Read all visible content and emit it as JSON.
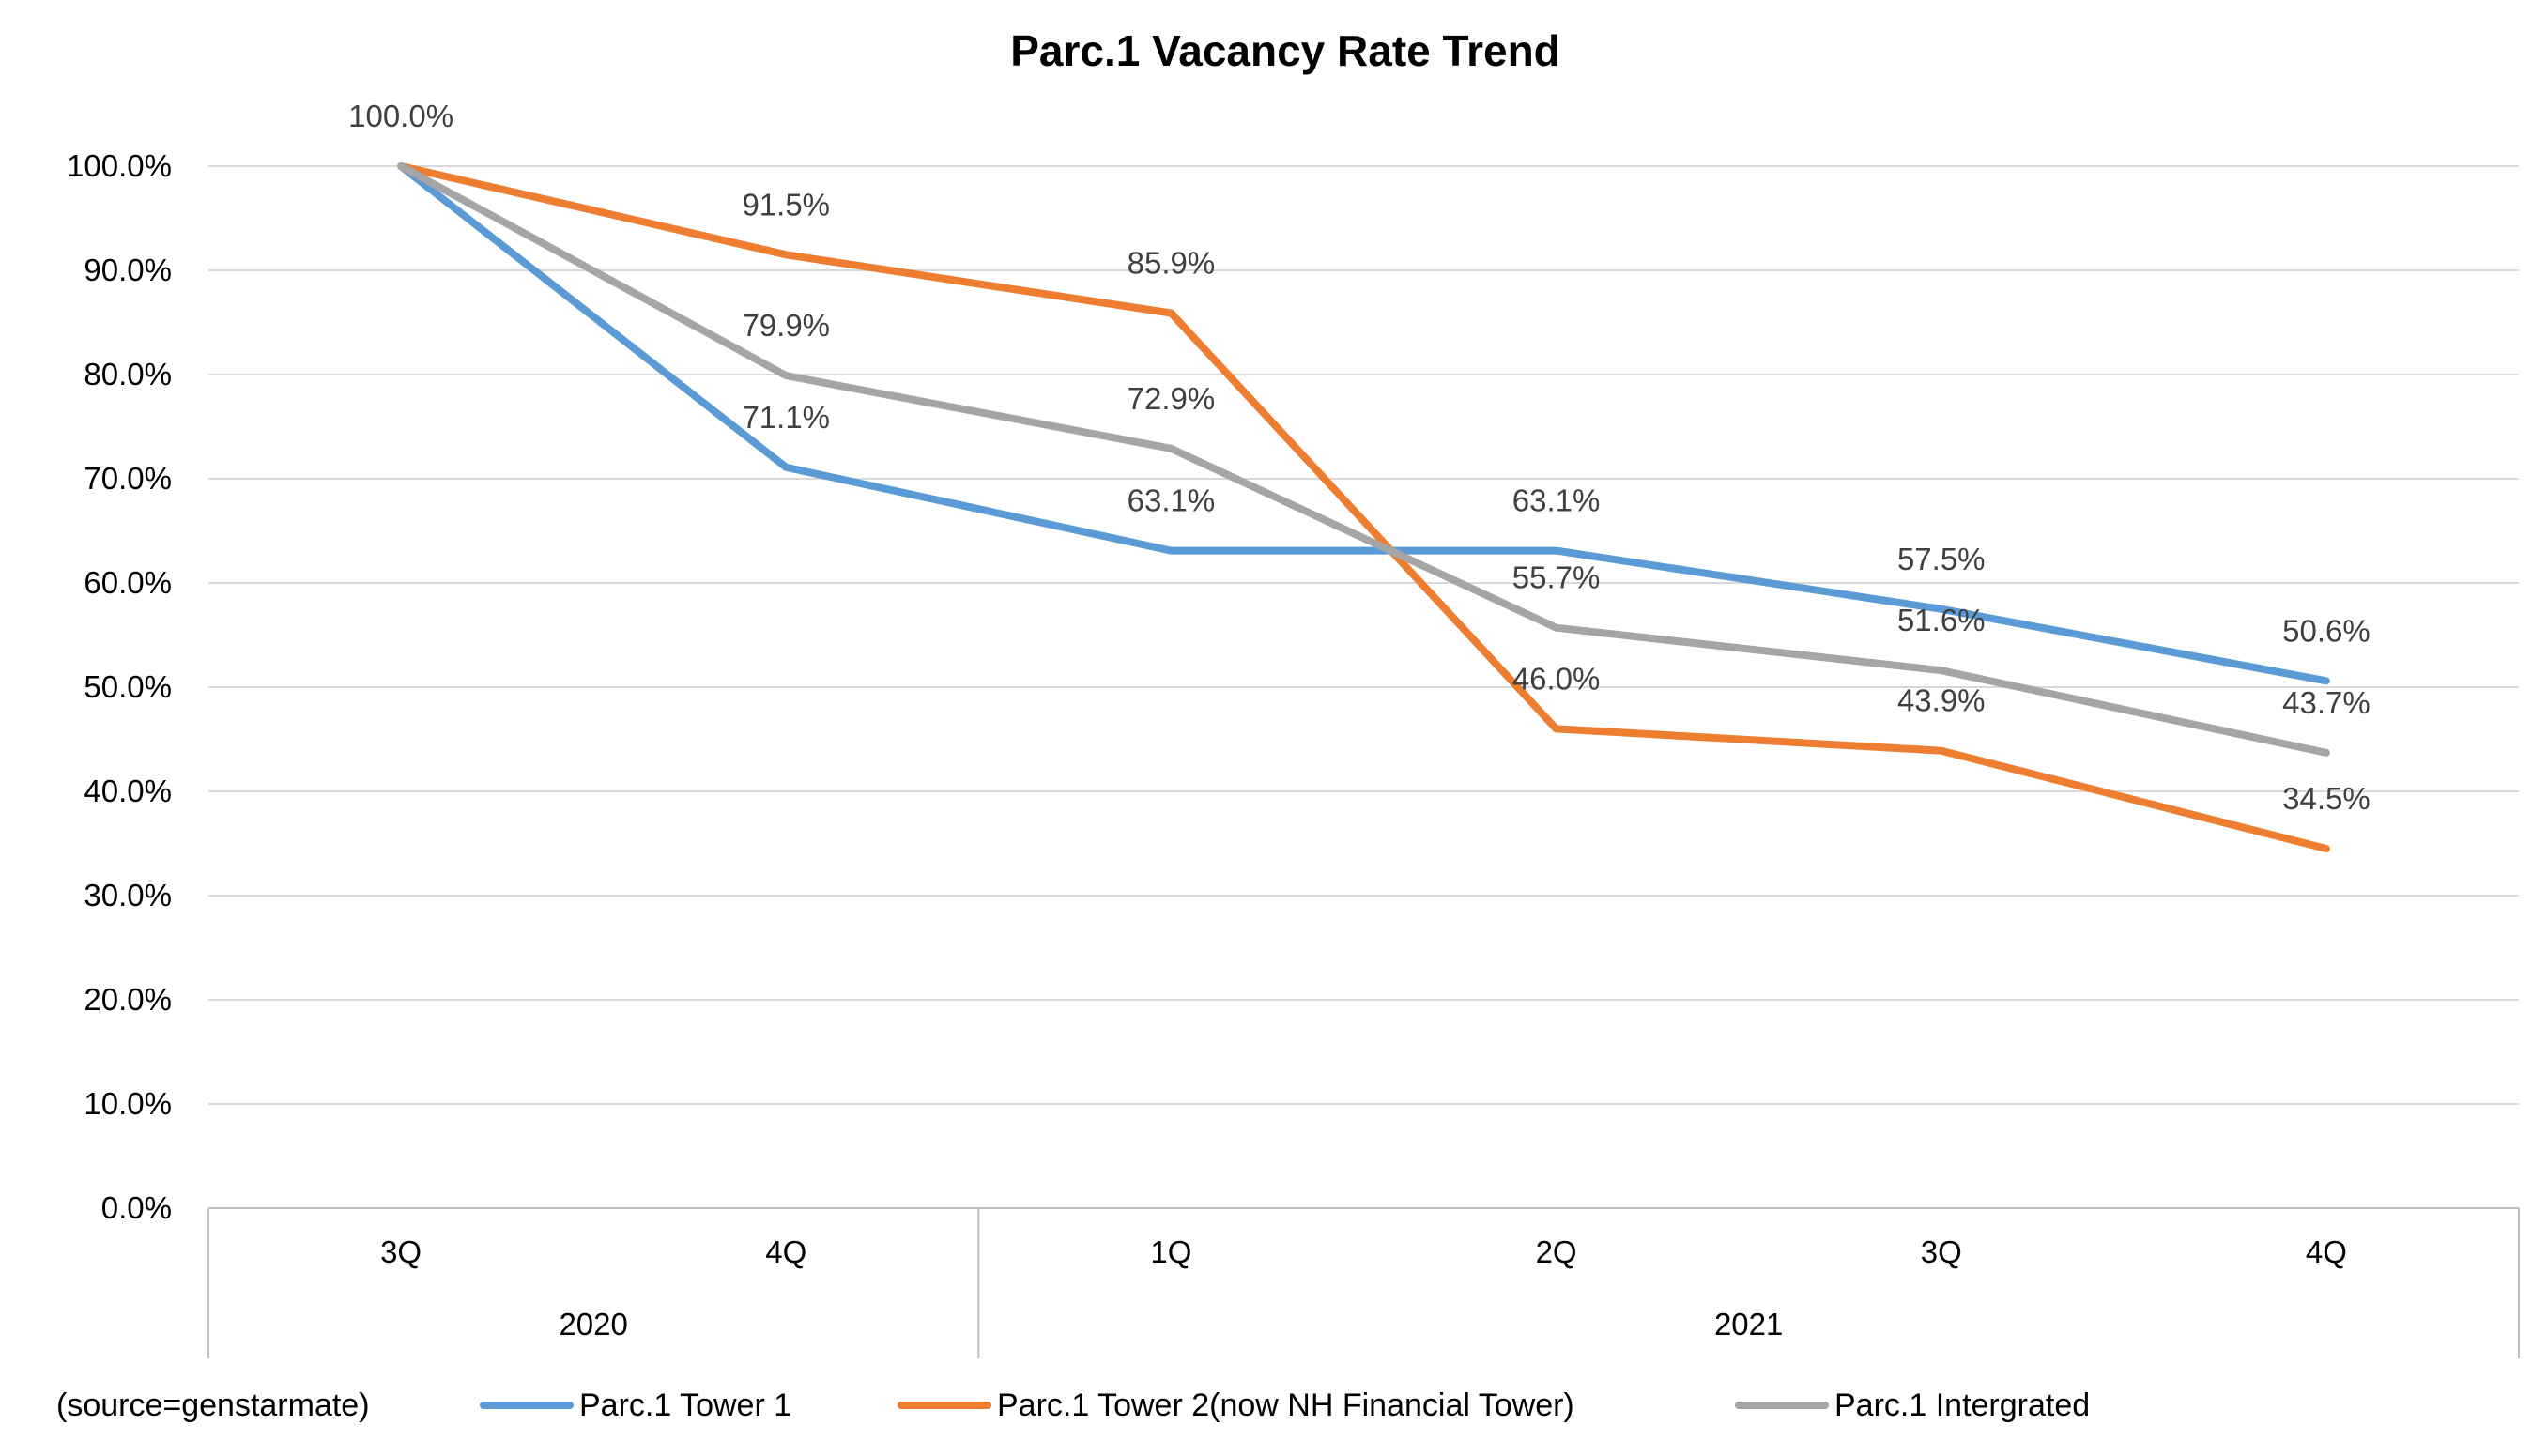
{
  "chart_data": {
    "type": "line",
    "title": "Parc.1 Vacancy Rate Trend",
    "categories": [
      "3Q",
      "4Q",
      "1Q",
      "2Q",
      "3Q",
      "4Q"
    ],
    "groups": [
      {
        "label": "2020",
        "span": 2
      },
      {
        "label": "2021",
        "span": 4
      }
    ],
    "ylim": [
      0,
      100
    ],
    "yticks": [
      "0.0%",
      "10.0%",
      "20.0%",
      "30.0%",
      "40.0%",
      "50.0%",
      "60.0%",
      "70.0%",
      "80.0%",
      "90.0%",
      "100.0%"
    ],
    "grid": true,
    "legend_position": "bottom",
    "series": [
      {
        "name": "Parc.1 Tower 1",
        "color": "#5b9bd5",
        "values": [
          100.0,
          71.1,
          63.1,
          63.1,
          57.5,
          50.6
        ],
        "labels": [
          "",
          "71.1%",
          "63.1%",
          "63.1%",
          "57.5%",
          "50.6%"
        ]
      },
      {
        "name": "Parc.1 Tower 2(now NH Financial Tower)",
        "color": "#ed7d31",
        "values": [
          100.0,
          91.5,
          85.9,
          46.0,
          43.9,
          34.5
        ],
        "labels": [
          "100.0%",
          "91.5%",
          "85.9%",
          "46.0%",
          "43.9%",
          "34.5%"
        ]
      },
      {
        "name": "Parc.1 Intergrated",
        "color": "#a5a5a5",
        "values": [
          100.0,
          79.9,
          72.9,
          55.7,
          51.6,
          43.7
        ],
        "labels": [
          "",
          "79.9%",
          "72.9%",
          "55.7%",
          "51.6%",
          "43.7%"
        ]
      }
    ],
    "annotation": "(source=genstarmate)"
  }
}
